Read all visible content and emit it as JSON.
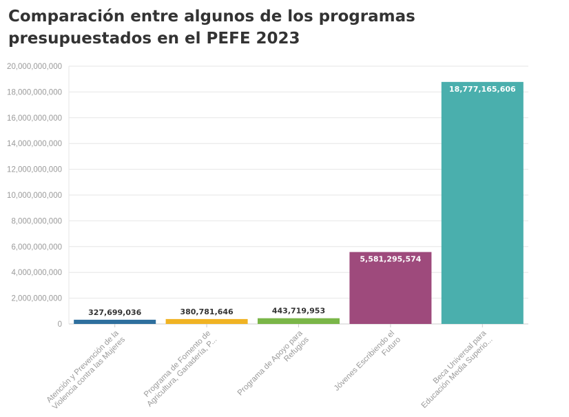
{
  "title": "Comparación entre algunos de los programas presupuestados en el PEFE 2023",
  "chart_data": {
    "type": "bar",
    "title": "Comparación entre algunos de los programas presupuestados en el PEFE 2023",
    "categories": [
      [
        "Atención y Prevención de la",
        "Violencia contra las Mujeres"
      ],
      [
        "Programa de Fomento de",
        "Agricultura, Ganadería, P..."
      ],
      [
        "Programa de Apoyo para",
        "Refugios"
      ],
      [
        "Jóvenes Escribiendo el",
        "Futuro"
      ],
      [
        "Beca Universal para",
        "Educación Media Superio..."
      ]
    ],
    "values": [
      327699036,
      380781646,
      443719953,
      5581295574,
      18777165606
    ],
    "value_labels": [
      "327,699,036",
      "380,781,646",
      "443,719,953",
      "5,581,295,574",
      "18,777,165,606"
    ],
    "colors": [
      "#2e6f9e",
      "#f0b323",
      "#7ab648",
      "#9e4a7c",
      "#4aafad"
    ],
    "ylim": [
      0,
      20000000000
    ],
    "yticks": [
      "0",
      "2,000,000,000",
      "4,000,000,000",
      "6,000,000,000",
      "8,000,000,000",
      "10,000,000,000",
      "12,000,000,000",
      "14,000,000,000",
      "16,000,000,000",
      "18,000,000,000",
      "20,000,000,000"
    ],
    "grid": true,
    "xlabel": "",
    "ylabel": ""
  }
}
